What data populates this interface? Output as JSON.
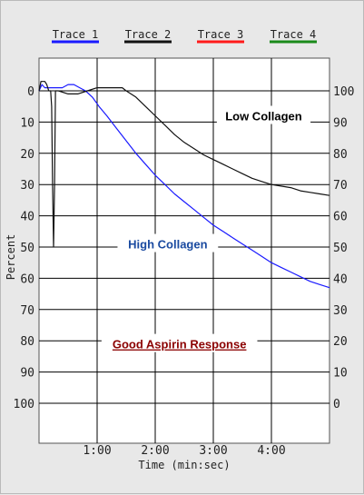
{
  "legend": [
    {
      "label": "Trace 1",
      "color": "#1a1aff"
    },
    {
      "label": "Trace 2",
      "color": "#111111"
    },
    {
      "label": "Trace 3",
      "color": "#ff1a1a"
    },
    {
      "label": "Trace 4",
      "color": "#1a8a1a"
    }
  ],
  "chart_data": {
    "type": "line",
    "xlabel": "Time (min:sec)",
    "ylabel": "Percent",
    "x_unit": "seconds",
    "xlim": [
      0,
      300
    ],
    "x_ticks": [
      {
        "value": 60,
        "label": "1:00"
      },
      {
        "value": 120,
        "label": "2:00"
      },
      {
        "value": 180,
        "label": "3:00"
      },
      {
        "value": 240,
        "label": "4:00"
      }
    ],
    "ylim_left": [
      0,
      100
    ],
    "y_ticks_left": [
      "0",
      "10",
      "20",
      "30",
      "40",
      "50",
      "60",
      "70",
      "80",
      "90",
      "100"
    ],
    "y_ticks_right": [
      "100",
      "90",
      "80",
      "70",
      "60",
      "50",
      "40",
      "30",
      "20",
      "10",
      "0"
    ],
    "grid": true,
    "series": [
      {
        "name": "Trace 1",
        "color": "#1a1aff",
        "points": [
          [
            0,
            0
          ],
          [
            3,
            -2
          ],
          [
            6,
            -1
          ],
          [
            12,
            -1
          ],
          [
            18,
            -1
          ],
          [
            24,
            -1
          ],
          [
            30,
            -2
          ],
          [
            36,
            -2
          ],
          [
            42,
            -1
          ],
          [
            48,
            0
          ],
          [
            55,
            2
          ],
          [
            62,
            5
          ],
          [
            70,
            8
          ],
          [
            80,
            12
          ],
          [
            90,
            16
          ],
          [
            100,
            20
          ],
          [
            110,
            23.5
          ],
          [
            120,
            27
          ],
          [
            130,
            30
          ],
          [
            140,
            33
          ],
          [
            150,
            35.5
          ],
          [
            160,
            38
          ],
          [
            170,
            40.5
          ],
          [
            180,
            43
          ],
          [
            190,
            45
          ],
          [
            200,
            47
          ],
          [
            210,
            49
          ],
          [
            220,
            51
          ],
          [
            230,
            53
          ],
          [
            240,
            55
          ],
          [
            250,
            56.5
          ],
          [
            260,
            58
          ],
          [
            270,
            59.5
          ],
          [
            280,
            61
          ],
          [
            290,
            62
          ],
          [
            300,
            63
          ]
        ]
      },
      {
        "name": "Trace 2",
        "color": "#111111",
        "points": [
          [
            0,
            0
          ],
          [
            2,
            -3
          ],
          [
            6,
            -3
          ],
          [
            8,
            -2
          ],
          [
            10,
            0
          ],
          [
            12,
            0
          ],
          [
            13,
            5
          ],
          [
            14,
            30
          ],
          [
            15,
            50
          ],
          [
            16,
            30
          ],
          [
            17,
            0
          ],
          [
            20,
            0
          ],
          [
            30,
            1
          ],
          [
            40,
            1
          ],
          [
            50,
            0
          ],
          [
            60,
            -1
          ],
          [
            70,
            -1
          ],
          [
            80,
            -1
          ],
          [
            86,
            -1
          ],
          [
            90,
            0
          ],
          [
            100,
            2
          ],
          [
            110,
            5
          ],
          [
            120,
            8
          ],
          [
            130,
            11
          ],
          [
            140,
            14
          ],
          [
            150,
            16.5
          ],
          [
            160,
            18.5
          ],
          [
            170,
            20.5
          ],
          [
            180,
            22
          ],
          [
            190,
            23.5
          ],
          [
            200,
            25
          ],
          [
            210,
            26.5
          ],
          [
            220,
            28
          ],
          [
            230,
            29
          ],
          [
            240,
            30
          ],
          [
            250,
            30.5
          ],
          [
            260,
            31
          ],
          [
            270,
            32
          ],
          [
            280,
            32.5
          ],
          [
            290,
            33
          ],
          [
            300,
            33.5
          ]
        ]
      }
    ],
    "annotations": [
      {
        "text": "Low Collagen",
        "x": 232,
        "y": 8,
        "color": "#000000"
      },
      {
        "text": "High Collagen",
        "x": 133,
        "y": 49,
        "color": "#1a4aa0"
      },
      {
        "text": "Good Aspirin Response",
        "x": 145,
        "y": 81,
        "color": "#8b0000",
        "underline": true
      }
    ]
  }
}
